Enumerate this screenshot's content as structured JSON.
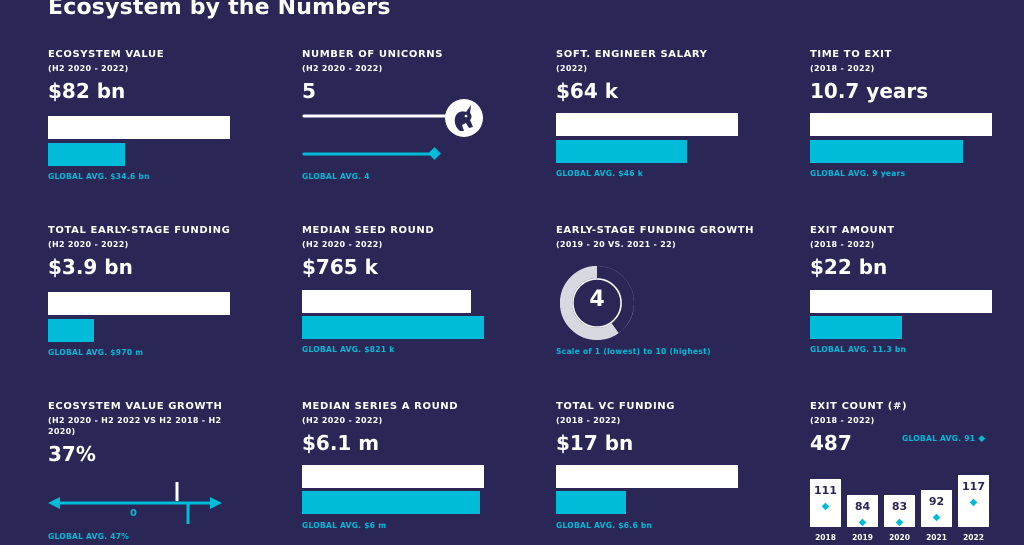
{
  "page": {
    "title": "Ecosystem by the Numbers"
  },
  "colors": {
    "background": "#2a2656",
    "accent": "#00bcd9",
    "white": "#ffffff"
  },
  "tiles": {
    "ecosystem_value": {
      "label": "ECOSYSTEM VALUE",
      "period": "(H2 2020 - 2022)",
      "value": "$82 bn",
      "avg": "GLOBAL AVG. $34.6 bn",
      "ecosystem_amount": 82,
      "global_amount": 34.6
    },
    "unicorns": {
      "label": "NUMBER OF UNICORNS",
      "period": "(H2 2020 - 2022)",
      "value": "5",
      "avg": "GLOBAL AVG. 4",
      "icon": "unicorn-icon",
      "ecosystem_amount": 5,
      "global_amount": 4
    },
    "engineer_salary": {
      "label": "SOFT. ENGINEER SALARY",
      "period": "(2022)",
      "value": "$64 k",
      "avg": "GLOBAL AVG. $46 k",
      "ecosystem_amount": 64,
      "global_amount": 46
    },
    "time_to_exit": {
      "label": "TIME TO EXIT",
      "period": "(2018 - 2022)",
      "value": "10.7 years",
      "avg": "GLOBAL AVG. 9 years",
      "ecosystem_amount": 10.7,
      "global_amount": 9
    },
    "early_funding": {
      "label": "TOTAL EARLY-STAGE FUNDING",
      "period": "(H2 2020 - 2022)",
      "value": "$3.9 bn",
      "avg": "GLOBAL AVG. $970 m",
      "ecosystem_amount": 3.9,
      "global_amount": 0.97
    },
    "seed_round": {
      "label": "MEDIAN SEED ROUND",
      "period": "(H2 2020 - 2022)",
      "value": "$765 k",
      "avg": "GLOBAL AVG. $821 k",
      "ecosystem_amount": 765,
      "global_amount": 821
    },
    "funding_growth": {
      "label": "EARLY-STAGE FUNDING GROWTH",
      "period": "(2019 - 20 VS. 2021 - 22)",
      "value": "4",
      "scale": "Scale of 1 (lowest) to 10 (highest)",
      "score": 4,
      "max": 10
    },
    "exit_amount": {
      "label": "EXIT AMOUNT",
      "period": "(2018 - 2022)",
      "value": "$22 bn",
      "avg": "GLOBAL AVG. 11.3 bn",
      "ecosystem_amount": 22,
      "global_amount": 11.3
    },
    "value_growth": {
      "label": "ECOSYSTEM VALUE GROWTH",
      "period": "(H2 2020 - H2 2022 VS H2 2018 - H2 2020)",
      "value": "37%",
      "zero_label": "0",
      "avg": "GLOBAL AVG. 47%"
    },
    "series_a": {
      "label": "MEDIAN SERIES A ROUND",
      "period": "(H2 2020 - 2022)",
      "value": "$6.1 m",
      "avg": "GLOBAL AVG. $6 m",
      "ecosystem_amount": 6.1,
      "global_amount": 6
    },
    "vc_funding": {
      "label": "TOTAL VC FUNDING",
      "period": "(2018 - 2022)",
      "value": "$17 bn",
      "avg": "GLOBAL AVG. $6.6 bn",
      "ecosystem_amount": 17,
      "global_amount": 6.6
    },
    "exit_count": {
      "label": "EXIT COUNT (#)",
      "period": "(2018 - 2022)",
      "value": "487",
      "avg": "GLOBAL AVG. 91"
    }
  },
  "chart_data": {
    "type": "bar",
    "title": "EXIT COUNT (#)",
    "categories": [
      "2018",
      "2019",
      "2020",
      "2021",
      "2022"
    ],
    "values": [
      111,
      84,
      83,
      92,
      117
    ],
    "value_labels": [
      "111",
      "84",
      "83",
      "92",
      "117"
    ],
    "global_avg": 91,
    "ylim": [
      0,
      117
    ]
  }
}
